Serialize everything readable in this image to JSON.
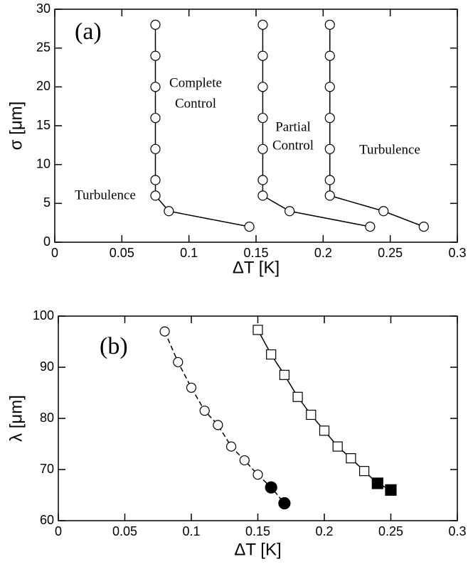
{
  "chart_data": [
    {
      "type": "line",
      "label": "(a)",
      "xlabel": "ΔT [K]",
      "ylabel": "σ [μm]",
      "xlim": [
        0,
        0.3
      ],
      "xticks": [
        0,
        0.05,
        0.1,
        0.15,
        0.2,
        0.25,
        0.3
      ],
      "ylim": [
        0,
        30
      ],
      "yticks": [
        0,
        5,
        10,
        15,
        20,
        25,
        30
      ],
      "annotations": [
        "Complete",
        "Control",
        "Partial",
        "Control",
        "Turbulence",
        "Turbulence"
      ],
      "series": [
        {
          "color": "#000000",
          "marker": "circle",
          "dashed": false,
          "x": [
            0.145,
            0.085,
            0.075,
            0.075,
            0.075,
            0.075,
            0.075,
            0.075,
            0.075
          ],
          "values": [
            2,
            4,
            6,
            8,
            12,
            16,
            20,
            24,
            28
          ],
          "filled": [
            false,
            false,
            false,
            false,
            false,
            false,
            false,
            false,
            false
          ]
        },
        {
          "color": "#000000",
          "marker": "circle",
          "dashed": false,
          "x": [
            0.235,
            0.175,
            0.155,
            0.155,
            0.155,
            0.155,
            0.155,
            0.155,
            0.155
          ],
          "values": [
            2,
            4,
            6,
            8,
            12,
            16,
            20,
            24,
            28
          ],
          "filled": [
            false,
            false,
            false,
            false,
            false,
            false,
            false,
            false,
            false
          ]
        },
        {
          "color": "#000000",
          "marker": "circle",
          "dashed": false,
          "x": [
            0.275,
            0.245,
            0.205,
            0.205,
            0.205,
            0.205,
            0.205,
            0.205,
            0.205
          ],
          "values": [
            2,
            4,
            6,
            8,
            12,
            16,
            20,
            24,
            28
          ],
          "filled": [
            false,
            false,
            false,
            false,
            false,
            false,
            false,
            false,
            false
          ]
        }
      ]
    },
    {
      "type": "line",
      "label": "(b)",
      "xlabel": "ΔT [K]",
      "ylabel": "λ [μm]",
      "xlim": [
        0,
        0.3
      ],
      "xticks": [
        0,
        0.05,
        0.1,
        0.15,
        0.2,
        0.25,
        0.3
      ],
      "ylim": [
        60,
        100
      ],
      "yticks": [
        60,
        70,
        80,
        90,
        100
      ],
      "annotations": [],
      "series": [
        {
          "color": "#000000",
          "marker": "circle",
          "dashed": true,
          "x": [
            0.08,
            0.09,
            0.1,
            0.11,
            0.12,
            0.13,
            0.14,
            0.15,
            0.16,
            0.17
          ],
          "values": [
            97,
            91,
            86,
            81.5,
            78.7,
            74.5,
            71.8,
            69,
            66.5,
            63.4
          ],
          "filled": [
            false,
            false,
            false,
            false,
            false,
            false,
            false,
            false,
            true,
            true
          ]
        },
        {
          "color": "#000000",
          "marker": "square",
          "dashed": false,
          "x": [
            0.15,
            0.16,
            0.17,
            0.18,
            0.19,
            0.2,
            0.21,
            0.22,
            0.23,
            0.24,
            0.25
          ],
          "values": [
            97.3,
            92.5,
            88.5,
            84.2,
            80.7,
            77.6,
            74.5,
            72.2,
            69.7,
            67.3,
            66
          ],
          "filled": [
            false,
            false,
            false,
            false,
            false,
            false,
            false,
            false,
            false,
            true,
            true
          ]
        }
      ]
    }
  ]
}
